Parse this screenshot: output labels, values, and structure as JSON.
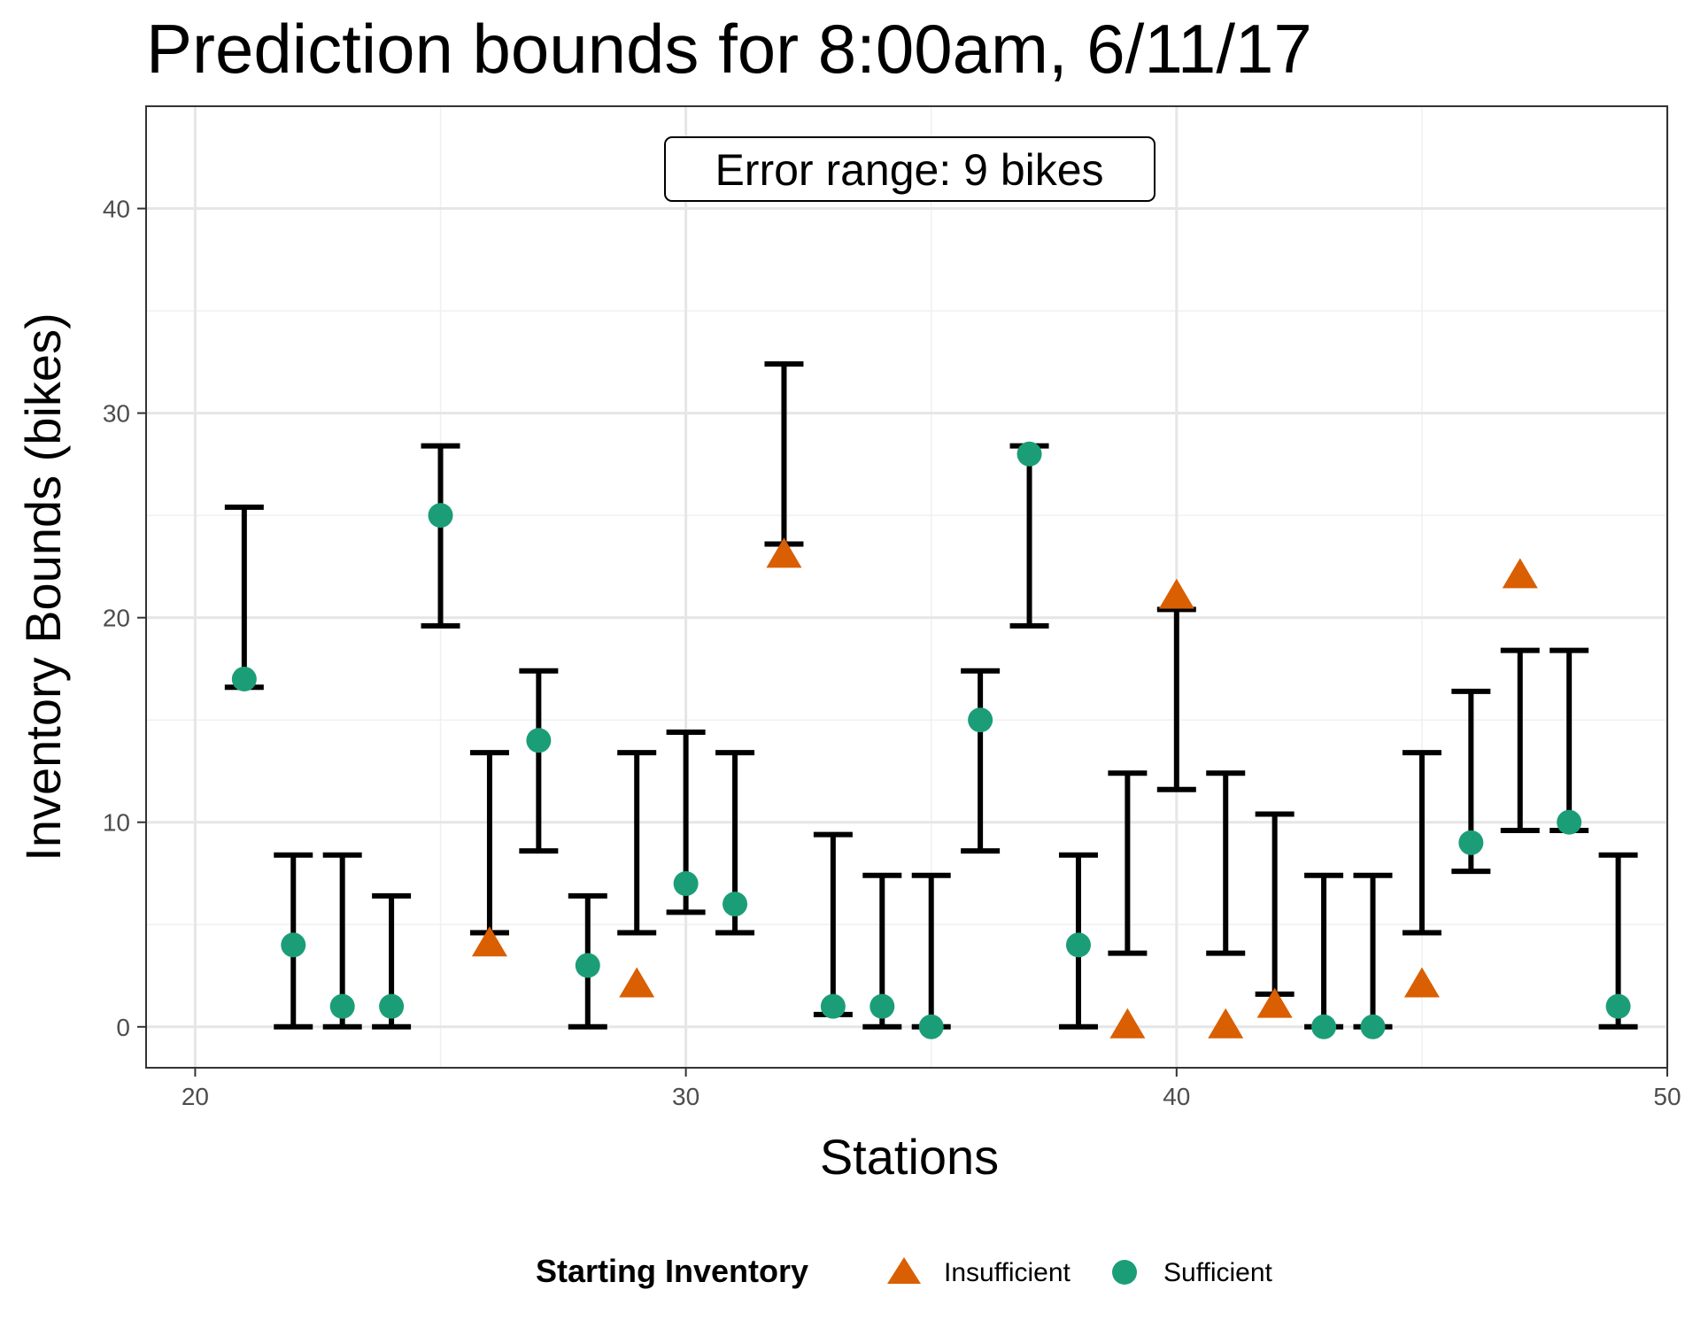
{
  "chart_data": {
    "type": "scatter",
    "title": "Prediction bounds for 8:00am, 6/11/17",
    "xlabel": "Stations",
    "ylabel": "Inventory Bounds (bikes)",
    "xlim": [
      19,
      50
    ],
    "ylim": [
      -2,
      45
    ],
    "x_ticks": [
      20,
      30,
      40,
      50
    ],
    "y_ticks": [
      0,
      10,
      20,
      30,
      40
    ],
    "grid": true,
    "annotation": "Error range: 9 bikes",
    "legend": {
      "title": "Starting Inventory",
      "position": "bottom",
      "entries": [
        {
          "label": "Insufficient",
          "shape": "triangle",
          "color": "#D95F02"
        },
        {
          "label": "Sufficient",
          "shape": "circle",
          "color": "#1B9E77"
        }
      ]
    },
    "error_bars": [
      {
        "x": 21,
        "lower": 16.6,
        "upper": 25.4
      },
      {
        "x": 22,
        "lower": 0,
        "upper": 8.4
      },
      {
        "x": 23,
        "lower": 0,
        "upper": 8.4
      },
      {
        "x": 24,
        "lower": 0,
        "upper": 6.4
      },
      {
        "x": 25,
        "lower": 19.6,
        "upper": 28.4
      },
      {
        "x": 26,
        "lower": 4.6,
        "upper": 13.4
      },
      {
        "x": 27,
        "lower": 8.6,
        "upper": 17.4
      },
      {
        "x": 28,
        "lower": 0,
        "upper": 6.4
      },
      {
        "x": 29,
        "lower": 4.6,
        "upper": 13.4
      },
      {
        "x": 30,
        "lower": 5.6,
        "upper": 14.4
      },
      {
        "x": 31,
        "lower": 4.6,
        "upper": 13.4
      },
      {
        "x": 32,
        "lower": 23.6,
        "upper": 32.4
      },
      {
        "x": 33,
        "lower": 0.6,
        "upper": 9.4
      },
      {
        "x": 34,
        "lower": 0,
        "upper": 7.4
      },
      {
        "x": 35,
        "lower": 0,
        "upper": 7.4
      },
      {
        "x": 36,
        "lower": 8.6,
        "upper": 17.4
      },
      {
        "x": 37,
        "lower": 19.6,
        "upper": 28.4
      },
      {
        "x": 38,
        "lower": 0,
        "upper": 8.4
      },
      {
        "x": 39,
        "lower": 3.6,
        "upper": 12.4
      },
      {
        "x": 40,
        "lower": 11.6,
        "upper": 20.4
      },
      {
        "x": 41,
        "lower": 3.6,
        "upper": 12.4
      },
      {
        "x": 42,
        "lower": 1.6,
        "upper": 10.4
      },
      {
        "x": 43,
        "lower": 0,
        "upper": 7.4
      },
      {
        "x": 44,
        "lower": 0,
        "upper": 7.4
      },
      {
        "x": 45,
        "lower": 4.6,
        "upper": 13.4
      },
      {
        "x": 46,
        "lower": 7.6,
        "upper": 16.4
      },
      {
        "x": 47,
        "lower": 9.6,
        "upper": 18.4
      },
      {
        "x": 48,
        "lower": 9.6,
        "upper": 18.4
      },
      {
        "x": 49,
        "lower": 0,
        "upper": 8.4
      }
    ],
    "series": [
      {
        "name": "Insufficient",
        "color": "#D95F02",
        "marker": "triangle",
        "points": [
          {
            "x": 26,
            "y": 4
          },
          {
            "x": 29,
            "y": 2
          },
          {
            "x": 32,
            "y": 23
          },
          {
            "x": 39,
            "y": 0
          },
          {
            "x": 40,
            "y": 21
          },
          {
            "x": 41,
            "y": 0
          },
          {
            "x": 42,
            "y": 1
          },
          {
            "x": 45,
            "y": 2
          },
          {
            "x": 47,
            "y": 22
          }
        ]
      },
      {
        "name": "Sufficient",
        "color": "#1B9E77",
        "marker": "circle",
        "points": [
          {
            "x": 21,
            "y": 17
          },
          {
            "x": 22,
            "y": 4
          },
          {
            "x": 23,
            "y": 1
          },
          {
            "x": 24,
            "y": 1
          },
          {
            "x": 25,
            "y": 25
          },
          {
            "x": 27,
            "y": 14
          },
          {
            "x": 28,
            "y": 3
          },
          {
            "x": 30,
            "y": 7
          },
          {
            "x": 31,
            "y": 6
          },
          {
            "x": 33,
            "y": 1
          },
          {
            "x": 34,
            "y": 1
          },
          {
            "x": 35,
            "y": 0
          },
          {
            "x": 36,
            "y": 15
          },
          {
            "x": 37,
            "y": 28
          },
          {
            "x": 38,
            "y": 4
          },
          {
            "x": 43,
            "y": 0
          },
          {
            "x": 44,
            "y": 0
          },
          {
            "x": 46,
            "y": 9
          },
          {
            "x": 48,
            "y": 10
          },
          {
            "x": 49,
            "y": 1
          }
        ]
      }
    ]
  }
}
